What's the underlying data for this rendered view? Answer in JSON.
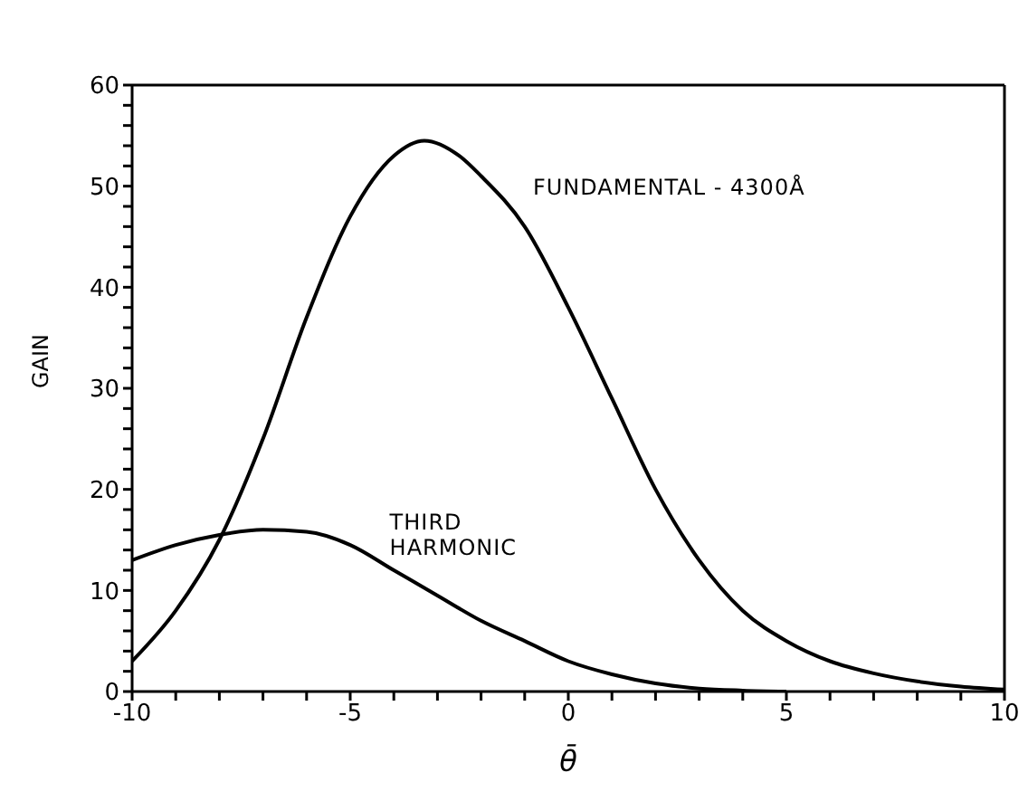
{
  "chart_data": {
    "type": "line",
    "xlabel": "θ̄",
    "ylabel": "GAIN",
    "xlim": [
      -10,
      10
    ],
    "ylim": [
      0,
      60
    ],
    "xticks": [
      -10,
      {
        "value": -9,
        "label": null
      },
      {
        "value": -8,
        "label": null
      },
      {
        "value": -7,
        "label": null
      },
      {
        "value": -6,
        "label": null
      },
      -5,
      {
        "value": -4,
        "label": null
      },
      {
        "value": -3,
        "label": null
      },
      {
        "value": -2,
        "label": null
      },
      {
        "value": -1,
        "label": null
      },
      0,
      {
        "value": 1,
        "label": null
      },
      {
        "value": 2,
        "label": null
      },
      {
        "value": 3,
        "label": null
      },
      {
        "value": 4,
        "label": null
      },
      5,
      {
        "value": 6,
        "label": null
      },
      {
        "value": 7,
        "label": null
      },
      {
        "value": 8,
        "label": null
      },
      {
        "value": 9,
        "label": null
      },
      10
    ],
    "yticks": [
      0,
      {
        "value": 2,
        "label": null
      },
      {
        "value": 4,
        "label": null
      },
      {
        "value": 6,
        "label": null
      },
      {
        "value": 8,
        "label": null
      },
      10,
      {
        "value": 12,
        "label": null
      },
      {
        "value": 14,
        "label": null
      },
      {
        "value": 16,
        "label": null
      },
      {
        "value": 18,
        "label": null
      },
      20,
      {
        "value": 22,
        "label": null
      },
      {
        "value": 24,
        "label": null
      },
      {
        "value": 26,
        "label": null
      },
      {
        "value": 28,
        "label": null
      },
      30,
      {
        "value": 32,
        "label": null
      },
      {
        "value": 34,
        "label": null
      },
      {
        "value": 36,
        "label": null
      },
      {
        "value": 38,
        "label": null
      },
      40,
      {
        "value": 42,
        "label": null
      },
      {
        "value": 44,
        "label": null
      },
      {
        "value": 46,
        "label": null
      },
      {
        "value": 48,
        "label": null
      },
      50,
      {
        "value": 52,
        "label": null
      },
      {
        "value": 54,
        "label": null
      },
      {
        "value": 56,
        "label": null
      },
      {
        "value": 58,
        "label": null
      },
      60
    ],
    "legend": false,
    "marker": "none",
    "line_style": "solid",
    "series": [
      {
        "name": "FUNDAMENTAL - 4300Å",
        "color": "#000000",
        "x": [
          -10,
          -9,
          -8,
          -7,
          -6,
          -5,
          -4,
          -3.3,
          -2.5,
          -2,
          -1,
          0,
          1,
          2,
          3,
          4,
          5,
          6,
          7,
          8,
          9,
          10
        ],
        "values": [
          3,
          8,
          15,
          25,
          37,
          47,
          53,
          54.5,
          53,
          51,
          46,
          38,
          29,
          20,
          13,
          8,
          5,
          3,
          1.8,
          1,
          0.5,
          0.2
        ]
      },
      {
        "name": "THIRD HARMONIC",
        "color": "#000000",
        "x": [
          -10,
          -9,
          -8,
          -7,
          -6,
          -5,
          -4,
          -3,
          -2,
          -1,
          0,
          1,
          2,
          3,
          4,
          5
        ],
        "values": [
          13,
          14.5,
          15.5,
          16,
          15.8,
          14.5,
          12,
          9.5,
          7,
          5,
          3,
          1.7,
          0.8,
          0.3,
          0.1,
          0
        ]
      }
    ]
  }
}
